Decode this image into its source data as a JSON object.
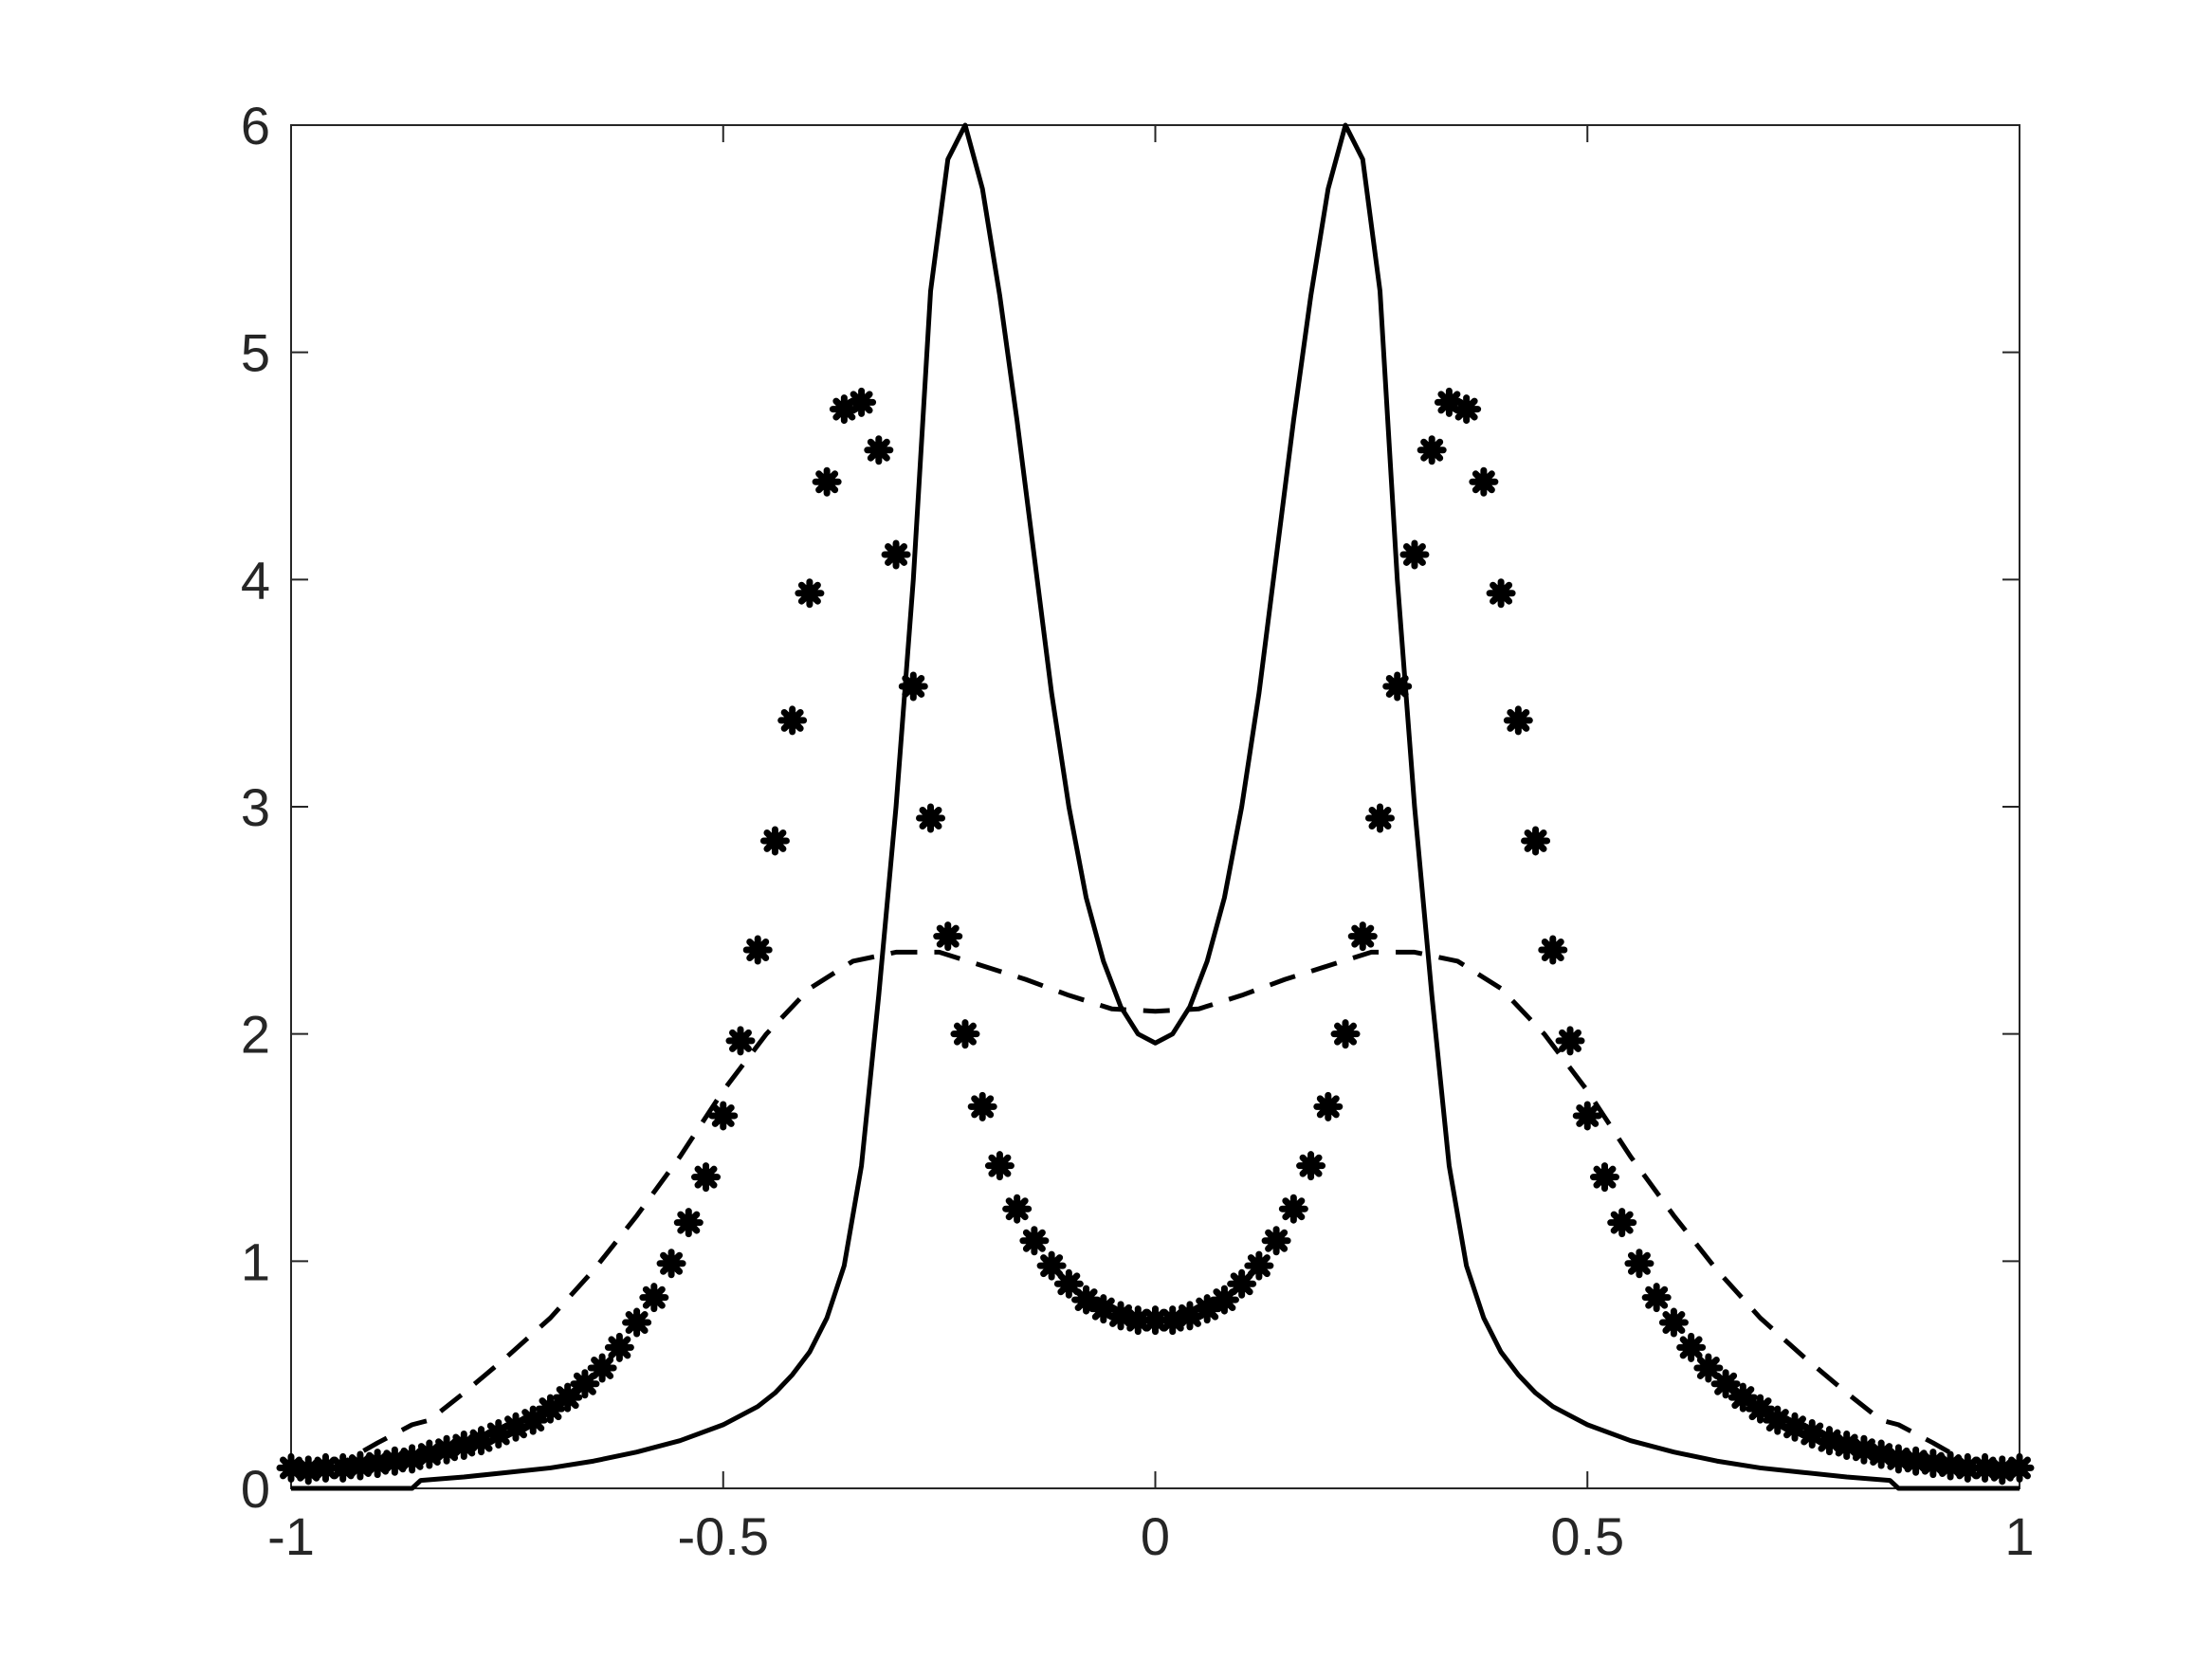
{
  "chart_data": {
    "type": "line",
    "xlim": [
      -1,
      1
    ],
    "xticks": [
      -1,
      -0.5,
      0,
      0.5,
      1
    ],
    "ylim": [
      0,
      6
    ],
    "yticks": [
      0,
      1,
      2,
      3,
      4,
      5,
      6
    ],
    "box": true,
    "series": [
      {
        "line_style": "solid",
        "marker": "none",
        "color": "#000000",
        "x": [
          -1,
          -0.86,
          -0.85,
          -0.8,
          -0.75,
          -0.7,
          -0.65,
          -0.6,
          -0.55,
          -0.5,
          -0.46,
          -0.44,
          -0.42,
          -0.4,
          -0.38,
          -0.36,
          -0.34,
          -0.32,
          -0.3,
          -0.28,
          -0.26,
          -0.24,
          -0.22,
          -0.2,
          -0.18,
          -0.16,
          -0.14,
          -0.12,
          -0.1,
          -0.08,
          -0.06,
          -0.04,
          -0.02,
          0,
          0.02,
          0.04,
          0.06,
          0.08,
          0.1,
          0.12,
          0.14,
          0.16,
          0.18,
          0.2,
          0.22,
          0.24,
          0.26,
          0.28,
          0.3,
          0.32,
          0.34,
          0.36,
          0.38,
          0.4,
          0.42,
          0.44,
          0.46,
          0.5,
          0.55,
          0.6,
          0.65,
          0.7,
          0.75,
          0.8,
          0.85,
          0.86,
          1
        ],
        "values": [
          0,
          0,
          0.035,
          0.05,
          0.07,
          0.09,
          0.12,
          0.16,
          0.21,
          0.28,
          0.36,
          0.42,
          0.5,
          0.6,
          0.75,
          0.98,
          1.42,
          2.17,
          3.0,
          4.0,
          5.27,
          5.85,
          6.0,
          5.72,
          5.25,
          4.7,
          4.1,
          3.5,
          3.0,
          2.6,
          2.32,
          2.12,
          2.0,
          1.96,
          2.0,
          2.12,
          2.32,
          2.6,
          3.0,
          3.5,
          4.1,
          4.7,
          5.25,
          5.72,
          6.0,
          5.85,
          5.27,
          4.0,
          3.0,
          2.17,
          1.42,
          0.98,
          0.75,
          0.6,
          0.5,
          0.42,
          0.36,
          0.28,
          0.21,
          0.16,
          0.12,
          0.09,
          0.07,
          0.05,
          0.035,
          0,
          0
        ]
      },
      {
        "line_style": "dashed",
        "marker": "none",
        "color": "#000000",
        "x": [
          -0.96,
          -0.9,
          -0.86,
          -0.84,
          -0.8,
          -0.75,
          -0.7,
          -0.65,
          -0.6,
          -0.55,
          -0.5,
          -0.45,
          -0.4,
          -0.35,
          -0.3,
          -0.25,
          -0.2,
          -0.15,
          -0.1,
          -0.05,
          0,
          0.05,
          0.1,
          0.15,
          0.2,
          0.25,
          0.3,
          0.35,
          0.4,
          0.45,
          0.5,
          0.55,
          0.6,
          0.65,
          0.7,
          0.75,
          0.8,
          0.84,
          0.86,
          0.9,
          0.96
        ],
        "values": [
          0.07,
          0.2,
          0.28,
          0.3,
          0.42,
          0.58,
          0.75,
          0.96,
          1.2,
          1.46,
          1.75,
          2.0,
          2.2,
          2.32,
          2.36,
          2.36,
          2.3,
          2.24,
          2.17,
          2.11,
          2.1,
          2.11,
          2.17,
          2.24,
          2.3,
          2.36,
          2.36,
          2.32,
          2.2,
          2.0,
          1.75,
          1.46,
          1.2,
          0.96,
          0.75,
          0.58,
          0.42,
          0.3,
          0.28,
          0.2,
          0.07
        ]
      },
      {
        "line_style": "none",
        "marker": "*",
        "color": "#000000",
        "x": [
          -1,
          -0.98,
          -0.96,
          -0.94,
          -0.92,
          -0.9,
          -0.88,
          -0.86,
          -0.84,
          -0.82,
          -0.8,
          -0.78,
          -0.76,
          -0.74,
          -0.72,
          -0.7,
          -0.68,
          -0.66,
          -0.64,
          -0.62,
          -0.6,
          -0.58,
          -0.56,
          -0.54,
          -0.52,
          -0.5,
          -0.48,
          -0.46,
          -0.44,
          -0.42,
          -0.4,
          -0.38,
          -0.36,
          -0.34,
          -0.32,
          -0.3,
          -0.28,
          -0.26,
          -0.24,
          -0.22,
          -0.2,
          -0.18,
          -0.16,
          -0.14,
          -0.12,
          -0.1,
          -0.08,
          -0.06,
          -0.04,
          -0.02,
          0,
          0.02,
          0.04,
          0.06,
          0.08,
          0.1,
          0.12,
          0.14,
          0.16,
          0.18,
          0.2,
          0.22,
          0.24,
          0.26,
          0.28,
          0.3,
          0.32,
          0.34,
          0.36,
          0.38,
          0.4,
          0.42,
          0.44,
          0.46,
          0.48,
          0.5,
          0.52,
          0.54,
          0.56,
          0.58,
          0.6,
          0.62,
          0.64,
          0.66,
          0.68,
          0.7,
          0.72,
          0.74,
          0.76,
          0.78,
          0.8,
          0.82,
          0.84,
          0.86,
          0.88,
          0.9,
          0.92,
          0.94,
          0.96,
          0.98,
          1
        ],
        "values": [
          0.09,
          0.08,
          0.09,
          0.09,
          0.1,
          0.11,
          0.12,
          0.13,
          0.15,
          0.17,
          0.19,
          0.21,
          0.24,
          0.27,
          0.3,
          0.35,
          0.4,
          0.46,
          0.53,
          0.62,
          0.73,
          0.84,
          0.99,
          1.17,
          1.37,
          1.64,
          1.97,
          2.37,
          2.85,
          3.38,
          3.94,
          4.43,
          4.75,
          4.78,
          4.57,
          4.11,
          3.53,
          2.95,
          2.43,
          2.0,
          1.68,
          1.42,
          1.23,
          1.09,
          0.98,
          0.9,
          0.83,
          0.79,
          0.76,
          0.74,
          0.74,
          0.74,
          0.76,
          0.79,
          0.83,
          0.9,
          0.98,
          1.09,
          1.23,
          1.42,
          1.68,
          2.0,
          2.43,
          2.95,
          3.53,
          4.11,
          4.57,
          4.78,
          4.75,
          4.43,
          3.94,
          3.38,
          2.85,
          2.37,
          1.97,
          1.64,
          1.37,
          1.17,
          0.99,
          0.84,
          0.73,
          0.62,
          0.53,
          0.46,
          0.4,
          0.35,
          0.3,
          0.27,
          0.24,
          0.21,
          0.19,
          0.17,
          0.15,
          0.13,
          0.12,
          0.11,
          0.1,
          0.09,
          0.09,
          0.08,
          0.09
        ]
      }
    ]
  }
}
